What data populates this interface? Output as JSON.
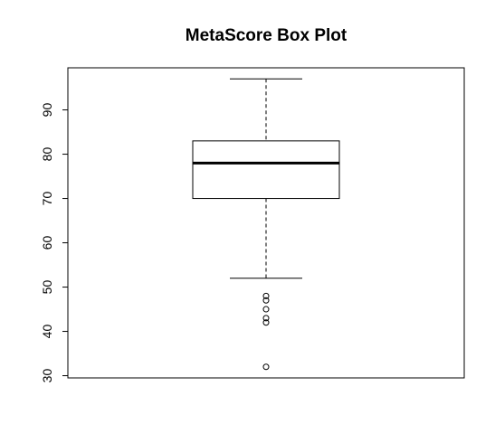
{
  "chart_data": {
    "type": "boxplot",
    "title": "MetaScore  Box Plot",
    "xlabel": "",
    "ylabel": "",
    "ylim": [
      29.5,
      99.5
    ],
    "yticks": [
      30,
      40,
      50,
      60,
      70,
      80,
      90
    ],
    "grid": false,
    "box": {
      "whisker_low": 52,
      "q1": 70,
      "median": 78,
      "q3": 83,
      "whisker_high": 97
    },
    "outliers": [
      48,
      47,
      45,
      43,
      42,
      32
    ],
    "colors": {
      "stroke": "#000000",
      "background": "#ffffff"
    }
  }
}
